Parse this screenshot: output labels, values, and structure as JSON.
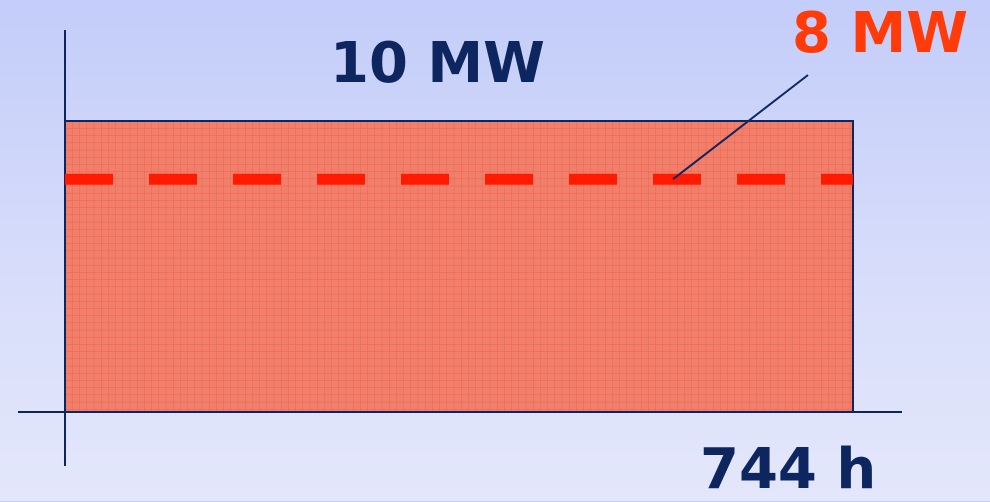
{
  "chart_data": {
    "type": "area",
    "labels": {
      "installed_power": "10 MW",
      "average_power": "8 MW",
      "period": "744 h"
    },
    "installed_power_mw": 10,
    "average_power_mw": 8,
    "period_hours": 744,
    "x_range": [
      0,
      744
    ],
    "y_range": [
      0,
      10
    ],
    "colors": {
      "fill": "#f0806c",
      "grid": "#f4523a",
      "outline": "#0e2660",
      "average_line": "#ff1a00",
      "label_dark": "#0e2660",
      "label_accent": "#ff3b0a"
    }
  }
}
